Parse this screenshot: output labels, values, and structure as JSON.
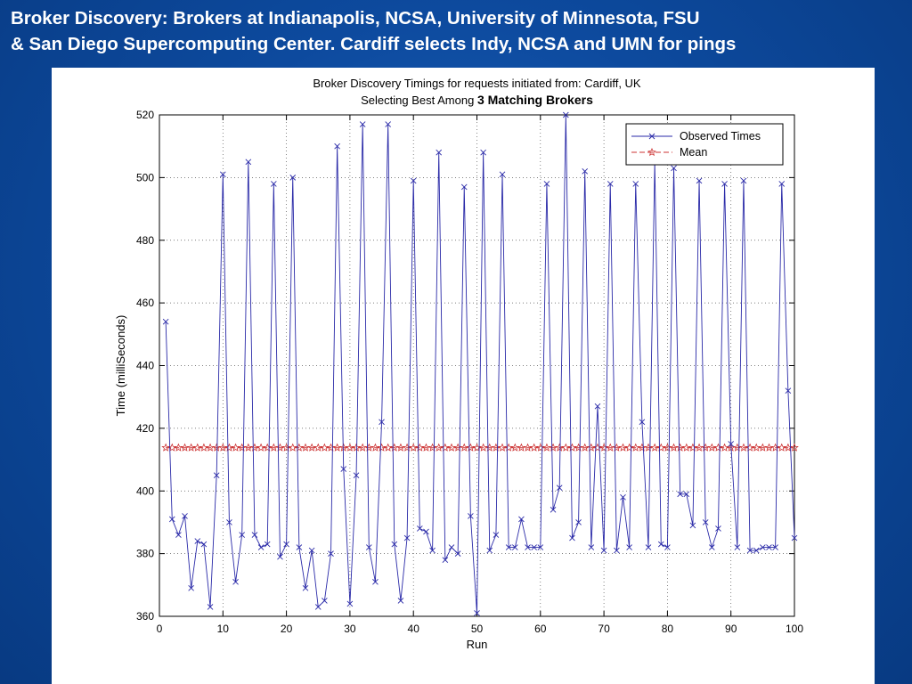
{
  "slide": {
    "title_line1": "Broker Discovery: Brokers at Indianapolis, NCSA, University of Minnesota, FSU",
    "title_line2": "& San Diego Supercomputing Center. Cardiff selects Indy, NCSA and UMN for pings"
  },
  "chart_data": {
    "type": "line",
    "title_line1": "Broker Discovery Timings for requests initiated from: Cardiff, UK",
    "title_line2_prefix": "Selecting Best Among ",
    "title_line2_bold": "3 Matching Brokers",
    "xlabel": "Run",
    "ylabel": "Time (milliSeconds)",
    "xlim": [
      0,
      100
    ],
    "ylim": [
      360,
      520
    ],
    "x_ticks": [
      0,
      10,
      20,
      30,
      40,
      50,
      60,
      70,
      80,
      90,
      100
    ],
    "y_ticks": [
      360,
      380,
      400,
      420,
      440,
      460,
      480,
      500,
      520
    ],
    "grid": true,
    "legend_position": "top-right",
    "series": [
      {
        "name": "Observed Times",
        "color": "#2a2aa8",
        "marker": "x",
        "x": [
          1,
          2,
          3,
          4,
          5,
          6,
          7,
          8,
          9,
          10,
          11,
          12,
          13,
          14,
          15,
          16,
          17,
          18,
          19,
          20,
          21,
          22,
          23,
          24,
          25,
          26,
          27,
          28,
          29,
          30,
          31,
          32,
          33,
          34,
          35,
          36,
          37,
          38,
          39,
          40,
          41,
          42,
          43,
          44,
          45,
          46,
          47,
          48,
          49,
          50,
          51,
          52,
          53,
          54,
          55,
          56,
          57,
          58,
          59,
          60,
          61,
          62,
          63,
          64,
          65,
          66,
          67,
          68,
          69,
          70,
          71,
          72,
          73,
          74,
          75,
          76,
          77,
          78,
          79,
          80,
          81,
          82,
          83,
          84,
          85,
          86,
          87,
          88,
          89,
          90,
          91,
          92,
          93,
          94,
          95,
          96,
          97,
          98,
          99,
          100
        ],
        "values": [
          454,
          391,
          386,
          392,
          369,
          384,
          383,
          363,
          405,
          501,
          390,
          371,
          386,
          505,
          386,
          382,
          383,
          498,
          379,
          383,
          500,
          382,
          369,
          381,
          363,
          365,
          380,
          510,
          407,
          364,
          405,
          517,
          382,
          371,
          422,
          517,
          383,
          365,
          385,
          499,
          388,
          387,
          381,
          508,
          378,
          382,
          380,
          497,
          392,
          361,
          508,
          381,
          386,
          501,
          382,
          382,
          391,
          382,
          382,
          382,
          498,
          394,
          401,
          520,
          385,
          390,
          502,
          382,
          427,
          381,
          498,
          381,
          398,
          382,
          498,
          422,
          382,
          505,
          383,
          382,
          503,
          399,
          399,
          389,
          499,
          390,
          382,
          388,
          498,
          415,
          382,
          499,
          381,
          381,
          382,
          382,
          382,
          498,
          432,
          385
        ]
      },
      {
        "name": "Mean",
        "color": "#cc3333",
        "marker": "star",
        "dashed": true,
        "value": 413.8
      }
    ]
  }
}
